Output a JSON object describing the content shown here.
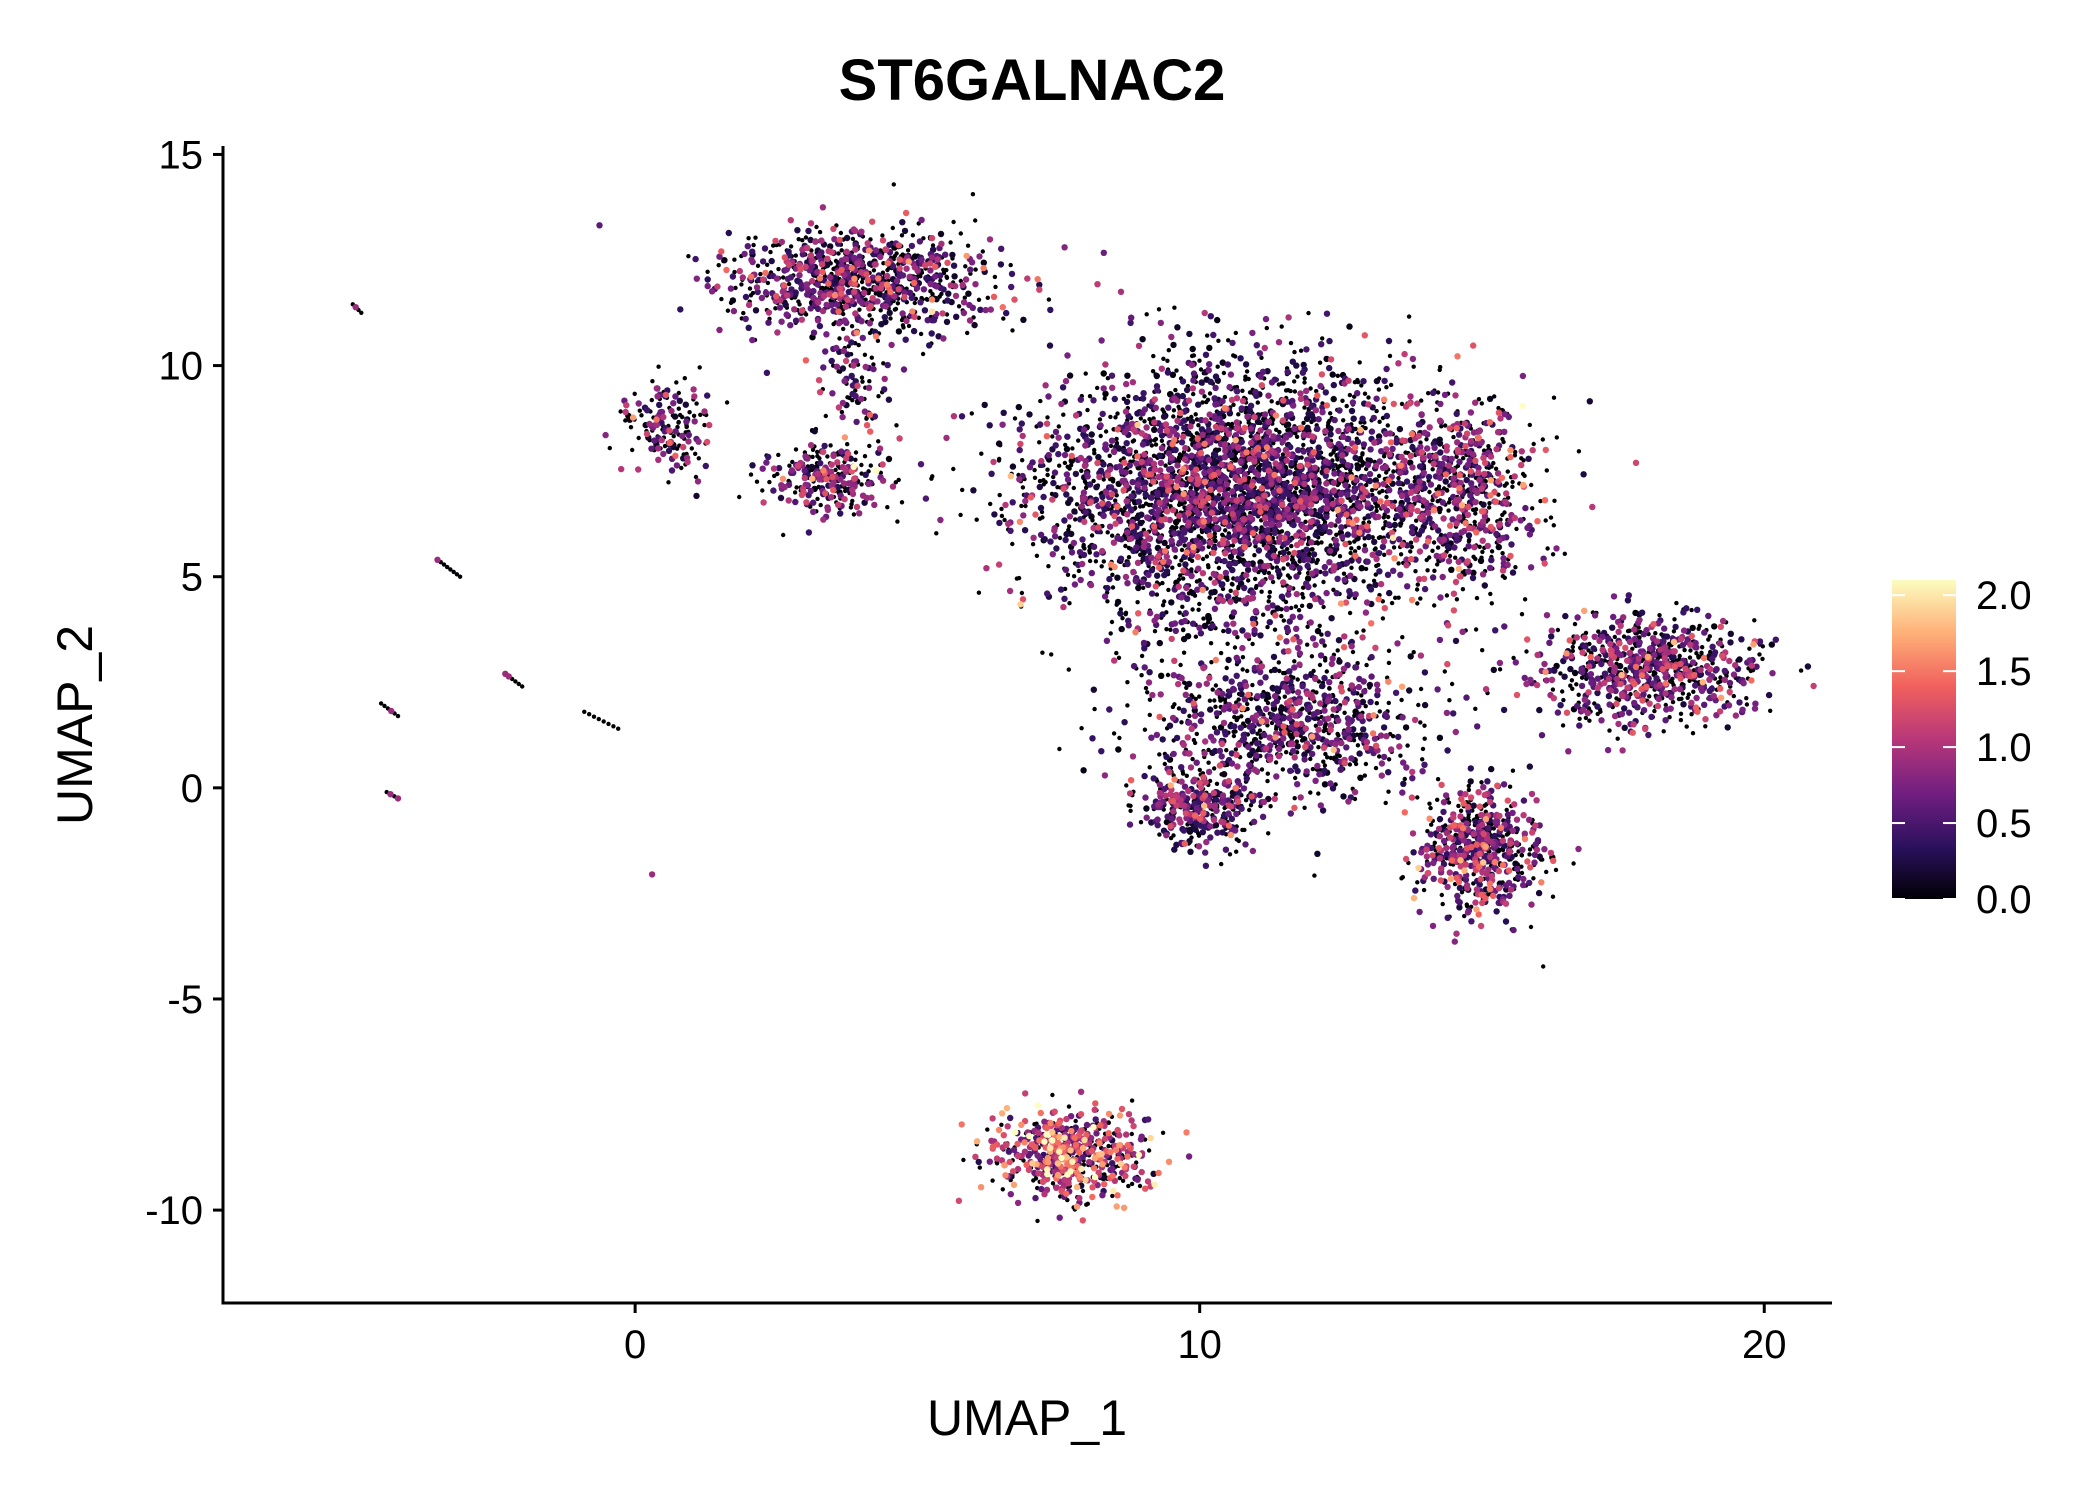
{
  "chart_data": {
    "type": "scatter",
    "title": "ST6GALNAC2",
    "xlabel": "UMAP_1",
    "ylabel": "UMAP_2",
    "xlim": [
      -7.3,
      21.2
    ],
    "ylim": [
      -12.2,
      15.2
    ],
    "xticks": [
      0,
      10,
      20
    ],
    "xtick_labels": [
      "0",
      "10",
      "20"
    ],
    "yticks": [
      -10,
      -5,
      0,
      5,
      10,
      15
    ],
    "ytick_labels": [
      "-10",
      "-5",
      "0",
      "5",
      "10",
      "15"
    ],
    "grid": false,
    "legend": {
      "type": "colorbar",
      "placement": "right",
      "min": 0.0,
      "max": 2.1,
      "ticks": [
        0.0,
        0.5,
        1.0,
        1.5,
        2.0
      ],
      "tick_labels": [
        "0.0",
        "0.5",
        "1.0",
        "1.5",
        "2.0"
      ],
      "colormap": [
        "#000004",
        "#2c115f",
        "#721f81",
        "#b73779",
        "#f1605d",
        "#feb078",
        "#fcfdbf"
      ]
    },
    "clusters": [
      {
        "name": "top-left",
        "center": [
          4.0,
          12.0
        ],
        "spread": [
          1.6,
          0.8
        ],
        "n": 950,
        "mean_expr": 0.55
      },
      {
        "name": "top-left-tail",
        "center": [
          3.9,
          9.7
        ],
        "spread": [
          0.5,
          0.8
        ],
        "n": 90,
        "mean_expr": 0.5
      },
      {
        "name": "left-small",
        "center": [
          0.6,
          8.5
        ],
        "spread": [
          0.5,
          0.8
        ],
        "n": 170,
        "mean_expr": 0.6
      },
      {
        "name": "mid-small",
        "center": [
          3.4,
          7.4
        ],
        "spread": [
          0.8,
          0.6
        ],
        "n": 260,
        "mean_expr": 0.7
      },
      {
        "name": "large-main",
        "center": [
          10.8,
          7.0
        ],
        "spread": [
          2.4,
          2.0
        ],
        "n": 3800,
        "mean_expr": 0.45
      },
      {
        "name": "large-right-lobe",
        "center": [
          14.6,
          7.0
        ],
        "spread": [
          0.9,
          1.5
        ],
        "n": 550,
        "mean_expr": 0.7
      },
      {
        "name": "large-lower",
        "center": [
          11.5,
          1.5
        ],
        "spread": [
          1.7,
          1.2
        ],
        "n": 900,
        "mean_expr": 0.5
      },
      {
        "name": "large-bottom-left",
        "center": [
          10.0,
          -0.5
        ],
        "spread": [
          0.7,
          0.6
        ],
        "n": 350,
        "mean_expr": 0.6
      },
      {
        "name": "bottom-right",
        "center": [
          15.0,
          -1.5
        ],
        "spread": [
          0.7,
          1.0
        ],
        "n": 600,
        "mean_expr": 0.75
      },
      {
        "name": "right-wing",
        "center": [
          18.0,
          2.8
        ],
        "spread": [
          1.3,
          0.9
        ],
        "n": 800,
        "mean_expr": 0.6
      },
      {
        "name": "bottom",
        "center": [
          7.7,
          -8.7
        ],
        "spread": [
          0.9,
          0.7
        ],
        "n": 600,
        "mean_expr": 1.1
      }
    ],
    "outlier_segments": [
      {
        "from": [
          -5.0,
          11.45
        ],
        "to": [
          -4.85,
          11.25
        ],
        "n": 4
      },
      {
        "from": [
          -3.5,
          5.4
        ],
        "to": [
          -3.1,
          5.0
        ],
        "n": 8
      },
      {
        "from": [
          -4.5,
          2.0
        ],
        "to": [
          -4.2,
          1.7
        ],
        "n": 6
      },
      {
        "from": [
          -2.3,
          2.7
        ],
        "to": [
          -2.0,
          2.4
        ],
        "n": 6
      },
      {
        "from": [
          -0.9,
          1.8
        ],
        "to": [
          -0.3,
          1.4
        ],
        "n": 8
      },
      {
        "from": [
          -4.4,
          -0.1
        ],
        "to": [
          -4.2,
          -0.25
        ],
        "n": 4
      },
      {
        "from": [
          0.3,
          -2.05
        ],
        "to": [
          0.3,
          -2.05
        ],
        "n": 1
      }
    ]
  }
}
